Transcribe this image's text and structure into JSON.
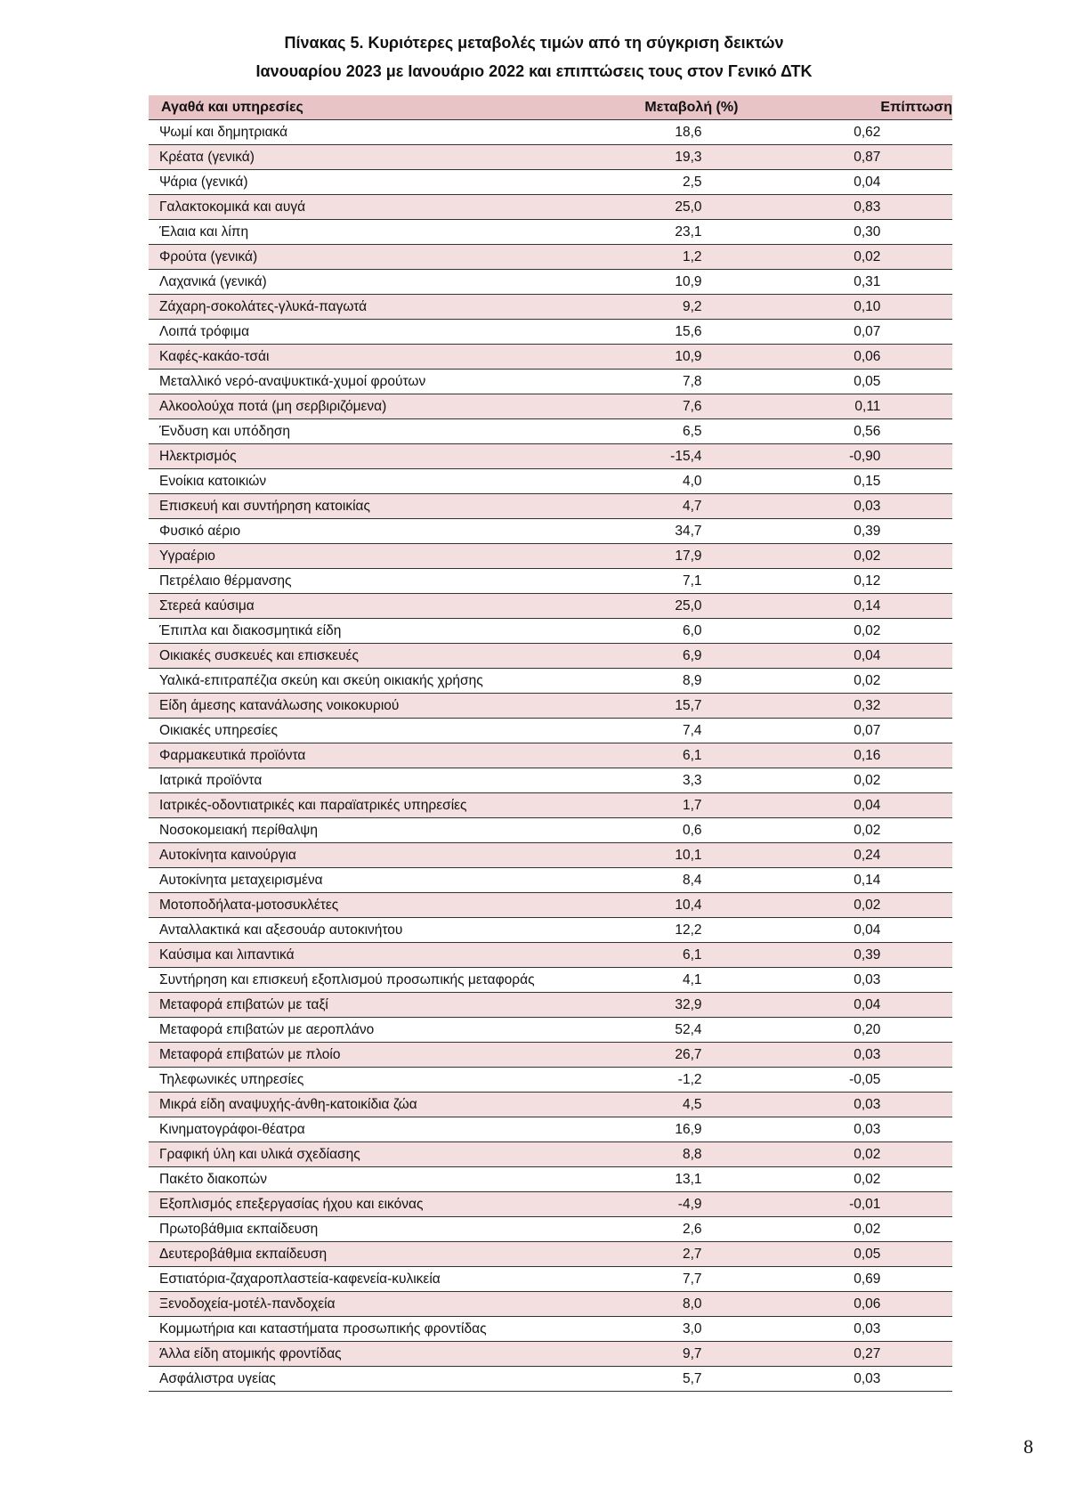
{
  "title_line1": "Πίνακας  5. Κυριότερες μεταβολές τιμών από τη σύγκριση δεικτών",
  "title_line2": "Ιανουαρίου 2023 με Ιανουάριο 2022 και επιπτώσεις τους στον Γενικό ΔΤΚ",
  "table": {
    "columns": [
      "Αγαθά και υπηρεσίες",
      "Μεταβολή (%)",
      "Επίπτωση"
    ],
    "rows": [
      [
        "Ψωμί και δημητριακά",
        "18,6",
        "0,62"
      ],
      [
        "Κρέατα (γενικά)",
        "19,3",
        "0,87"
      ],
      [
        "Ψάρια (γενικά)",
        "2,5",
        "0,04"
      ],
      [
        "Γαλακτοκομικά και αυγά",
        "25,0",
        "0,83"
      ],
      [
        "Έλαια και λίπη",
        "23,1",
        "0,30"
      ],
      [
        "Φρούτα (γενικά)",
        "1,2",
        "0,02"
      ],
      [
        "Λαχανικά (γενικά)",
        "10,9",
        "0,31"
      ],
      [
        "Ζάχαρη-σοκολάτες-γλυκά-παγωτά",
        "9,2",
        "0,10"
      ],
      [
        "Λοιπά τρόφιμα",
        "15,6",
        "0,07"
      ],
      [
        "Καφές-κακάο-τσάι",
        "10,9",
        "0,06"
      ],
      [
        "Μεταλλικό νερό-αναψυκτικά-χυμοί φρούτων",
        "7,8",
        "0,05"
      ],
      [
        "Αλκοολούχα ποτά (μη σερβιριζόμενα)",
        "7,6",
        "0,11"
      ],
      [
        "Ένδυση και υπόδηση",
        "6,5",
        "0,56"
      ],
      [
        "Ηλεκτρισμός",
        "-15,4",
        "-0,90"
      ],
      [
        "Ενοίκια κατοικιών",
        "4,0",
        "0,15"
      ],
      [
        "Επισκευή και συντήρηση κατοικίας",
        "4,7",
        "0,03"
      ],
      [
        "Φυσικό αέριο",
        "34,7",
        "0,39"
      ],
      [
        "Υγραέριο",
        "17,9",
        "0,02"
      ],
      [
        "Πετρέλαιο θέρμανσης",
        "7,1",
        "0,12"
      ],
      [
        "Στερεά καύσιμα",
        "25,0",
        "0,14"
      ],
      [
        "Έπιπλα και διακοσμητικά είδη",
        "6,0",
        "0,02"
      ],
      [
        "Οικιακές συσκευές και επισκευές",
        "6,9",
        "0,04"
      ],
      [
        "Υαλικά-επιτραπέζια σκεύη και σκεύη οικιακής χρήσης",
        "8,9",
        "0,02"
      ],
      [
        "Είδη άμεσης κατανάλωσης νοικοκυριού",
        "15,7",
        "0,32"
      ],
      [
        "Οικιακές υπηρεσίες",
        "7,4",
        "0,07"
      ],
      [
        "Φαρμακευτικά προϊόντα",
        "6,1",
        "0,16"
      ],
      [
        "Ιατρικά προϊόντα",
        "3,3",
        "0,02"
      ],
      [
        "Ιατρικές-οδοντιατρικές και παραϊατρικές υπηρεσίες",
        "1,7",
        "0,04"
      ],
      [
        "Νοσοκομειακή περίθαλψη",
        "0,6",
        "0,02"
      ],
      [
        "Αυτοκίνητα καινούργια",
        "10,1",
        "0,24"
      ],
      [
        "Αυτοκίνητα μεταχειρισμένα",
        "8,4",
        "0,14"
      ],
      [
        "Μοτοποδήλατα-μοτοσυκλέτες",
        "10,4",
        "0,02"
      ],
      [
        "Ανταλλακτικά και αξεσουάρ αυτοκινήτου",
        "12,2",
        "0,04"
      ],
      [
        "Καύσιμα και λιπαντικά",
        "6,1",
        "0,39"
      ],
      [
        "Συντήρηση και επισκευή εξοπλισμού προσωπικής μεταφοράς",
        "4,1",
        "0,03"
      ],
      [
        "Μεταφορά επιβατών με ταξί",
        "32,9",
        "0,04"
      ],
      [
        "Μεταφορά επιβατών με αεροπλάνο",
        "52,4",
        "0,20"
      ],
      [
        "Μεταφορά επιβατών με πλοίο",
        "26,7",
        "0,03"
      ],
      [
        "Τηλεφωνικές υπηρεσίες",
        "-1,2",
        "-0,05"
      ],
      [
        "Μικρά είδη αναψυχής-άνθη-κατοικίδια ζώα",
        "4,5",
        "0,03"
      ],
      [
        "Κινηματογράφοι-θέατρα",
        "16,9",
        "0,03"
      ],
      [
        "Γραφική ύλη και υλικά σχεδίασης",
        "8,8",
        "0,02"
      ],
      [
        "Πακέτο διακοπών",
        "13,1",
        "0,02"
      ],
      [
        "Εξοπλισμός επεξεργασίας ήχου και εικόνας",
        "-4,9",
        "-0,01"
      ],
      [
        "Πρωτοβάθμια εκπαίδευση",
        "2,6",
        "0,02"
      ],
      [
        "Δευτεροβάθμια εκπαίδευση",
        "2,7",
        "0,05"
      ],
      [
        "Εστιατόρια-ζαχαροπλαστεία-καφενεία-κυλικεία",
        "7,7",
        "0,69"
      ],
      [
        "Ξενοδοχεία-μοτέλ-πανδοχεία",
        "8,0",
        "0,06"
      ],
      [
        "Κομμωτήρια και καταστήματα προσωπικής φροντίδας",
        "3,0",
        "0,03"
      ],
      [
        "Άλλα είδη ατομικής φροντίδας",
        "9,7",
        "0,27"
      ],
      [
        "Ασφάλιστρα υγείας",
        "5,7",
        "0,03"
      ]
    ]
  },
  "page_number": "8"
}
